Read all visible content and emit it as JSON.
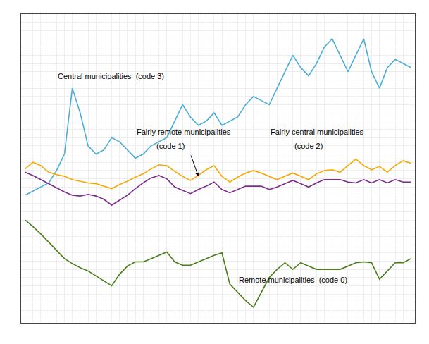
{
  "chart_data": {
    "type": "line",
    "x": [
      0,
      1,
      2,
      3,
      4,
      5,
      6,
      7,
      8,
      9,
      10,
      11,
      12,
      13,
      14,
      15,
      16,
      17,
      18,
      19,
      20,
      21,
      22,
      23,
      24,
      25,
      26,
      27,
      28,
      29,
      30,
      31,
      32,
      33,
      34,
      35,
      36,
      37,
      38,
      39,
      40,
      41,
      42,
      43,
      44,
      45,
      46,
      47,
      48,
      49
    ],
    "series": [
      {
        "color": "#4badd6",
        "values": [
          200,
          250,
          300,
          350,
          500,
          700,
          1500,
          1200,
          800,
          700,
          750,
          900,
          850,
          750,
          650,
          700,
          800,
          850,
          900,
          1100,
          1300,
          1150,
          1050,
          1100,
          1200,
          1050,
          1100,
          1150,
          1300,
          1400,
          1350,
          1300,
          1500,
          1700,
          1900,
          1750,
          1650,
          1800,
          2000,
          2100,
          1900,
          1700,
          1900,
          2100,
          1700,
          1500,
          1750,
          1850,
          1800,
          1750
        ]
      },
      {
        "color": "#f5a800",
        "values": [
          520,
          600,
          560,
          480,
          450,
          430,
          390,
          370,
          350,
          340,
          310,
          280,
          330,
          370,
          420,
          460,
          520,
          570,
          560,
          490,
          430,
          380,
          440,
          510,
          560,
          430,
          360,
          420,
          470,
          500,
          470,
          430,
          390,
          430,
          470,
          430,
          390,
          460,
          500,
          510,
          480,
          560,
          640,
          560,
          510,
          550,
          480,
          560,
          620,
          590
        ]
      },
      {
        "color": "#7b2d8b",
        "values": [
          480,
          440,
          390,
          340,
          290,
          240,
          200,
          190,
          210,
          190,
          150,
          80,
          140,
          200,
          280,
          350,
          410,
          440,
          400,
          300,
          260,
          220,
          270,
          310,
          360,
          270,
          230,
          270,
          310,
          310,
          310,
          270,
          300,
          340,
          380,
          340,
          300,
          350,
          390,
          390,
          390,
          360,
          350,
          390,
          350,
          390,
          350,
          390,
          360,
          360
        ]
      },
      {
        "color": "#4a7c1a",
        "values": [
          -100,
          -180,
          -270,
          -370,
          -470,
          -570,
          -630,
          -680,
          -720,
          -780,
          -840,
          -900,
          -760,
          -660,
          -610,
          -610,
          -570,
          -530,
          -490,
          -610,
          -650,
          -650,
          -610,
          -570,
          -530,
          -500,
          -880,
          -980,
          -1080,
          -1160,
          -980,
          -800,
          -700,
          -620,
          -700,
          -620,
          -660,
          -700,
          -700,
          -700,
          -700,
          -660,
          -620,
          -610,
          -620,
          -820,
          -720,
          -620,
          -620,
          -570
        ]
      }
    ],
    "xlim": [
      -0.5,
      49.5
    ],
    "ylim": [
      -1350,
      2400
    ],
    "xticks": [
      0,
      1,
      2,
      3,
      4,
      5,
      6,
      7,
      8,
      9,
      10,
      11,
      12,
      13,
      14,
      15,
      16,
      17,
      18,
      19,
      20,
      21,
      22,
      23,
      24,
      25,
      26,
      27,
      28,
      29,
      30,
      31,
      32,
      33,
      34,
      35,
      36,
      37,
      38,
      39,
      40,
      41,
      42,
      43,
      44,
      45,
      46,
      47,
      48,
      49
    ],
    "yticks": [
      -1300,
      -1200,
      -1100,
      -1000,
      -900,
      -800,
      -700,
      -600,
      -500,
      -400,
      -300,
      -200,
      -100,
      0,
      100,
      200,
      300,
      400,
      500,
      600,
      700,
      800,
      900,
      1000,
      1100,
      1200,
      1300,
      1400,
      1500,
      1600,
      1700,
      1800,
      1900,
      2000,
      2100,
      2200,
      2300,
      2400
    ],
    "grid": true,
    "tick_labels": false,
    "annotations": [
      "Central municipalities  (code 3)",
      "Fairly remote municipalities",
      "(code 1)",
      "Fairly central municipalities",
      "(code 2)",
      "Remote municipalities  (code 0)"
    ]
  }
}
